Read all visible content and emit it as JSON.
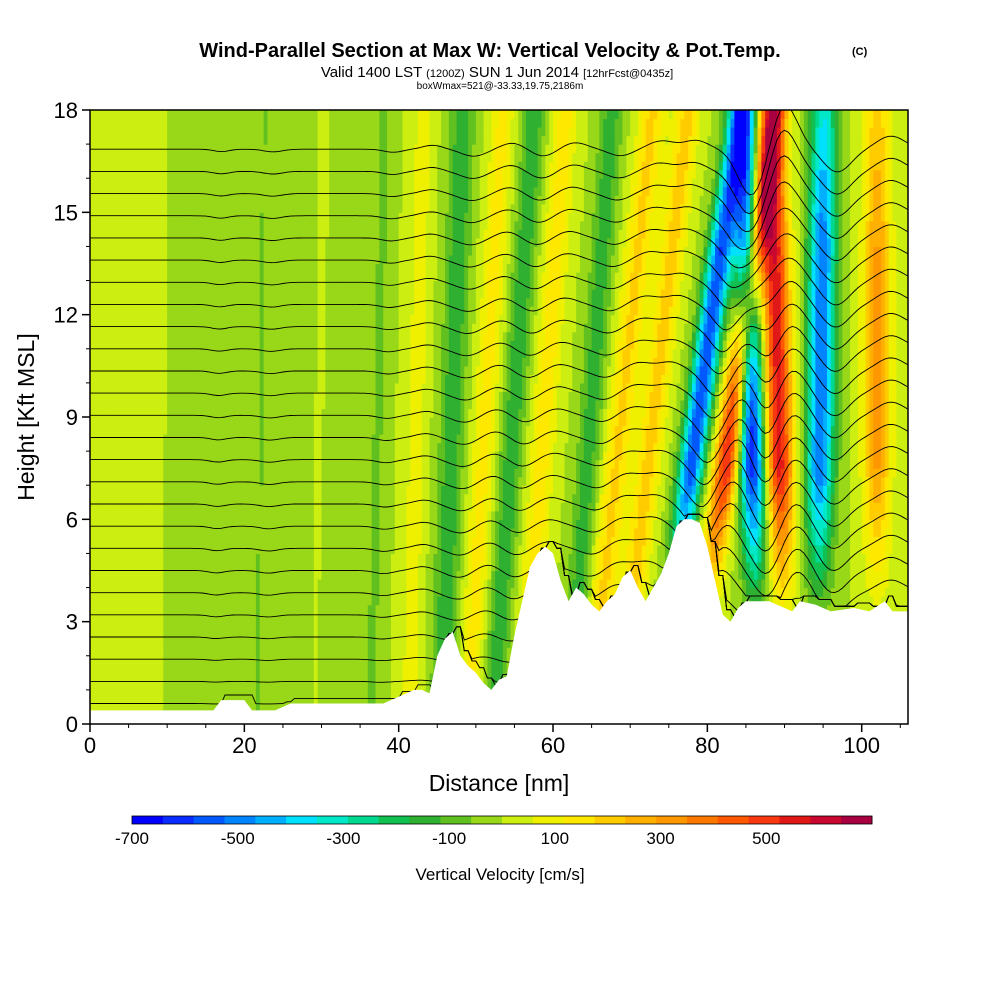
{
  "chart_data": {
    "type": "heatmap",
    "title": "Wind-Parallel Section at Max W: Vertical Velocity & Pot.Temp.",
    "title_mark": "(C)",
    "subtitle": {
      "valid": "Valid 1400 LST",
      "utc": "(1200Z)",
      "date": "SUN 1 Jun 2014",
      "forecast": "[12hrFcst@0435z]"
    },
    "box_info": "boxWmax=521@-33.33,19.75,2186m",
    "xlabel": "Distance [nm]",
    "ylabel": "Height [Kft MSL]",
    "xlim": [
      0,
      106
    ],
    "ylim": [
      0,
      18
    ],
    "x_ticks": [
      0,
      20,
      40,
      60,
      80,
      100
    ],
    "y_ticks": [
      0,
      3,
      6,
      9,
      12,
      15,
      18
    ],
    "colorbar": {
      "label": "Vertical Velocity [cm/s]",
      "range": [
        -700,
        700
      ],
      "tick_values": [
        -700,
        -500,
        -300,
        -100,
        100,
        300,
        500
      ],
      "tick_labels": [
        "-700",
        "-500",
        "-300",
        "-100",
        "100",
        "300",
        "500"
      ],
      "colors": [
        "#0000ff",
        "#0a2cff",
        "#0058ff",
        "#0084ff",
        "#00b0ff",
        "#00e0ff",
        "#00e8c8",
        "#00d890",
        "#10c050",
        "#30b030",
        "#60c020",
        "#98d818",
        "#ccee10",
        "#eef000",
        "#ffe800",
        "#ffcc00",
        "#ffb000",
        "#ff9800",
        "#ff7800",
        "#ff5800",
        "#f83810",
        "#e01818",
        "#c80830",
        "#a80040"
      ]
    },
    "terrain": [
      [
        0,
        0.4
      ],
      [
        11,
        0.4
      ],
      [
        12,
        0.4
      ],
      [
        13,
        0.4
      ],
      [
        16,
        0.4
      ],
      [
        17,
        0.7
      ],
      [
        20,
        0.7
      ],
      [
        21,
        0.4
      ],
      [
        24,
        0.4
      ],
      [
        25,
        0.5
      ],
      [
        26,
        0.6
      ],
      [
        38,
        0.6
      ],
      [
        40,
        0.8
      ],
      [
        42,
        1.0
      ],
      [
        43,
        1.0
      ],
      [
        44,
        0.9
      ],
      [
        45,
        2.0
      ],
      [
        46,
        2.5
      ],
      [
        47,
        2.7
      ],
      [
        48,
        2.0
      ],
      [
        49,
        1.7
      ],
      [
        50,
        1.5
      ],
      [
        51,
        1.2
      ],
      [
        52,
        1.0
      ],
      [
        53,
        1.3
      ],
      [
        54,
        1.4
      ],
      [
        55,
        2.6
      ],
      [
        56,
        3.6
      ],
      [
        57,
        4.6
      ],
      [
        58,
        5.0
      ],
      [
        59,
        5.2
      ],
      [
        60,
        5.0
      ],
      [
        61,
        4.2
      ],
      [
        62,
        3.6
      ],
      [
        63,
        4.0
      ],
      [
        64,
        3.8
      ],
      [
        65,
        3.5
      ],
      [
        66,
        3.3
      ],
      [
        67,
        3.6
      ],
      [
        68,
        3.8
      ],
      [
        69,
        4.3
      ],
      [
        70,
        4.5
      ],
      [
        71,
        4.0
      ],
      [
        72,
        3.6
      ],
      [
        73,
        4.0
      ],
      [
        74,
        4.4
      ],
      [
        75,
        5.0
      ],
      [
        76,
        5.8
      ],
      [
        77,
        6.0
      ],
      [
        78,
        6.0
      ],
      [
        79,
        5.9
      ],
      [
        80,
        5.2
      ],
      [
        81,
        4.2
      ],
      [
        82,
        3.2
      ],
      [
        83,
        3.0
      ],
      [
        84,
        3.4
      ],
      [
        85,
        3.6
      ],
      [
        88,
        3.6
      ],
      [
        89,
        3.5
      ],
      [
        91,
        3.3
      ],
      [
        92,
        3.6
      ],
      [
        94,
        3.5
      ],
      [
        96,
        3.3
      ],
      [
        99,
        3.4
      ],
      [
        101,
        3.3
      ],
      [
        103,
        3.6
      ],
      [
        104,
        3.3
      ],
      [
        106,
        3.3
      ]
    ],
    "w_features": [
      {
        "x_base": 81.5,
        "slope": 0.6,
        "width": 1.6,
        "w": 540
      },
      {
        "x_base": 89.5,
        "slope": -0.1,
        "width": 1.8,
        "w": 560
      },
      {
        "x_base": 102.0,
        "slope": 0.0,
        "width": 1.8,
        "w": 300
      },
      {
        "x_base": 77.0,
        "slope": 0.6,
        "width": 1.6,
        "w": -580
      },
      {
        "x_base": 86.0,
        "slope": -0.1,
        "width": 1.7,
        "w": -640
      },
      {
        "x_base": 94.5,
        "slope": 0.05,
        "width": 1.8,
        "w": -520
      },
      {
        "x_base": 71.5,
        "slope": 0.5,
        "width": 1.6,
        "w": 200
      },
      {
        "x_base": 67.5,
        "slope": 0.45,
        "width": 1.7,
        "w": 190
      },
      {
        "x_base": 64.0,
        "slope": 0.3,
        "width": 1.5,
        "w": -150
      },
      {
        "x_base": 58.0,
        "slope": 0.3,
        "width": 1.6,
        "w": 150
      },
      {
        "x_base": 54.0,
        "slope": 0.3,
        "width": 1.5,
        "w": -160
      },
      {
        "x_base": 50.5,
        "slope": 0.25,
        "width": 1.5,
        "w": 140
      },
      {
        "x_base": 46.5,
        "slope": 0.15,
        "width": 1.6,
        "w": -160
      },
      {
        "x_base": 42.0,
        "slope": 0.1,
        "width": 1.3,
        "w": 90
      },
      {
        "x_base": 37.0,
        "slope": 0.1,
        "width": 1.2,
        "w": -70
      },
      {
        "x_base": 22.0,
        "slope": 0.05,
        "width": 1.2,
        "w": -60
      },
      {
        "x_base": 15.5,
        "slope": 0.05,
        "width": 1.0,
        "w": -55
      }
    ],
    "theta_isentropes": {
      "count": 26,
      "base_height": 0.6,
      "spacing": 0.65
    }
  }
}
